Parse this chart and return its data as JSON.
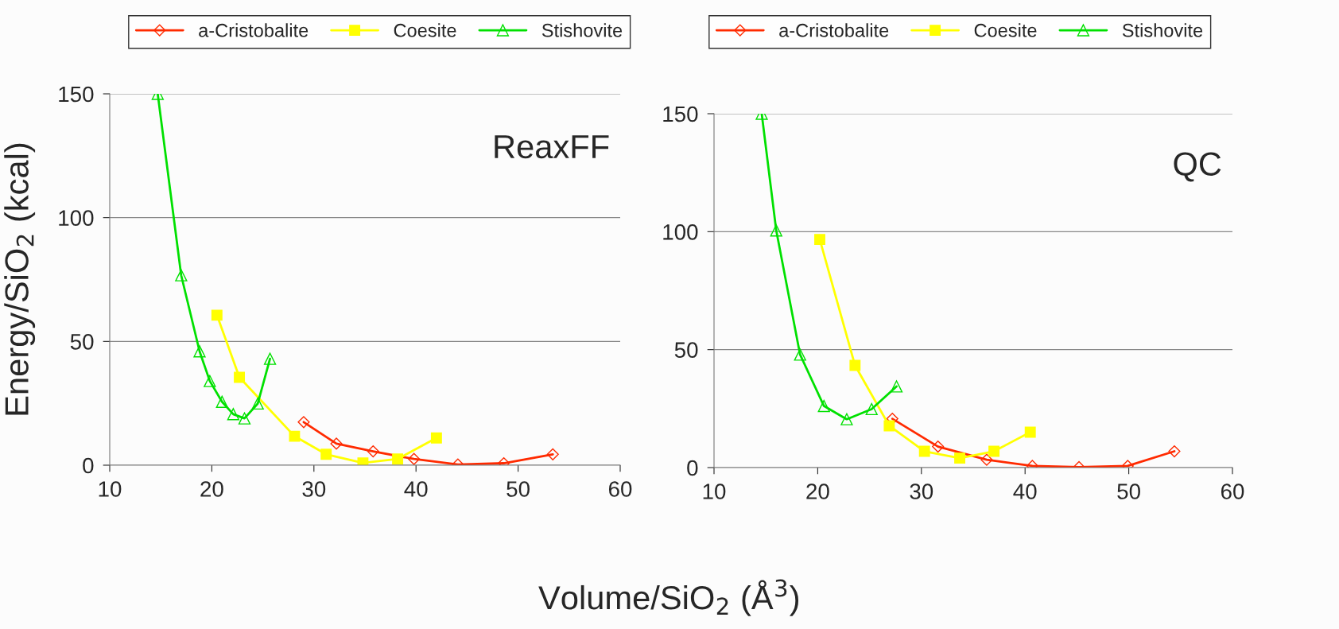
{
  "chart_data": [
    {
      "type": "line",
      "title": "ReaxFF",
      "xlabel": "Volume/SiO$_{2}$ (Å$^{3}$)",
      "ylabel": "Energy/SiO$_{2}$ (kcal)",
      "xlim": [
        10,
        60
      ],
      "xticks": [
        10,
        20,
        30,
        40,
        50,
        60
      ],
      "ylim": [
        0,
        150
      ],
      "yticks": [
        0,
        50,
        100,
        150
      ],
      "grid": "y",
      "legend": "top",
      "line_style": "solid",
      "series": [
        {
          "name": "a-Cristobalite",
          "color": "#ff2a00",
          "marker": "diamond",
          "x": [
            29.0,
            32.2,
            35.8,
            39.8,
            44.1,
            48.6,
            53.4
          ],
          "values": [
            17.4,
            8.7,
            5.6,
            2.5,
            0.3,
            0.8,
            4.4
          ]
        },
        {
          "name": "Coesite",
          "color": "#ffff00",
          "marker": "square",
          "x": [
            20.5,
            22.7,
            28.1,
            31.2,
            34.8,
            38.2,
            42.0
          ],
          "values": [
            60.6,
            35.5,
            11.7,
            4.4,
            0.9,
            2.5,
            11.0
          ]
        },
        {
          "name": "Stishovite",
          "color": "#00e000",
          "marker": "triangle",
          "x": [
            14.7,
            17.0,
            18.8,
            19.8,
            21.0,
            22.1,
            23.2,
            24.5,
            25.7
          ],
          "values": [
            150,
            76.7,
            46,
            34,
            25.6,
            20.6,
            18.9,
            24.9,
            43
          ]
        }
      ]
    },
    {
      "type": "line",
      "title": "QC",
      "xlim": [
        10,
        60
      ],
      "xticks": [
        10,
        20,
        30,
        40,
        50,
        60
      ],
      "ylim": [
        0,
        150
      ],
      "yticks": [
        0,
        50,
        100,
        150
      ],
      "grid": "y",
      "legend": "top",
      "line_style": "solid",
      "series": [
        {
          "name": "a-Cristobalite",
          "color": "#ff2a00",
          "marker": "diamond",
          "x": [
            27.2,
            31.6,
            36.3,
            40.7,
            45.2,
            49.9,
            54.4
          ],
          "values": [
            20.7,
            8.9,
            3.3,
            0.7,
            0.2,
            0.7,
            6.9
          ]
        },
        {
          "name": "Coesite",
          "color": "#ffff00",
          "marker": "square",
          "x": [
            20.2,
            23.6,
            26.9,
            30.3,
            33.7,
            37.0,
            40.5
          ],
          "values": [
            96.7,
            43.3,
            17.7,
            6.9,
            4.0,
            6.9,
            15.0
          ]
        },
        {
          "name": "Stishovite",
          "color": "#00e000",
          "marker": "triangle",
          "x": [
            14.6,
            16.0,
            18.3,
            20.6,
            22.8,
            25.2,
            27.6
          ],
          "values": [
            150,
            100.5,
            47.9,
            26.1,
            20.5,
            24.8,
            34.4
          ]
        }
      ]
    }
  ]
}
